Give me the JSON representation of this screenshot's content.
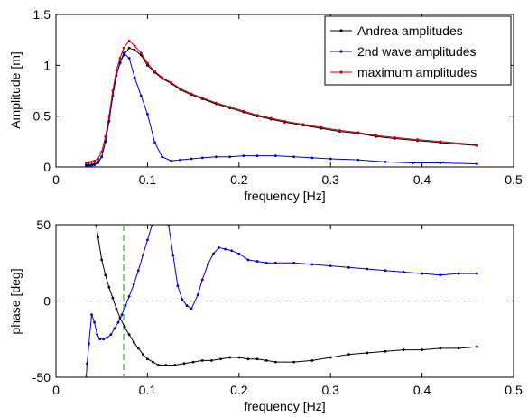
{
  "chart_data": [
    {
      "type": "line",
      "xlabel": "frequency [Hz]",
      "ylabel": "Amplitude [m]",
      "xlim": [
        0,
        0.5
      ],
      "ylim": [
        0,
        1.5
      ],
      "xticks": [
        0,
        0.1,
        0.2,
        0.3,
        0.4,
        0.5
      ],
      "xtick_labels": [
        "0",
        "0.1",
        "0.2",
        "0.3",
        "0.4",
        "0.5"
      ],
      "yticks": [
        0,
        0.5,
        1,
        1.5
      ],
      "ytick_labels": [
        "0",
        "0.5",
        "1",
        "1.5"
      ],
      "grid": false,
      "legend": "top-right",
      "series": [
        {
          "name": "Andrea amplitudes",
          "color": "#000000",
          "points": [
            [
              0.033,
              0.02
            ],
            [
              0.036,
              0.02
            ],
            [
              0.039,
              0.025
            ],
            [
              0.042,
              0.03
            ],
            [
              0.046,
              0.05
            ],
            [
              0.05,
              0.1
            ],
            [
              0.054,
              0.25
            ],
            [
              0.058,
              0.45
            ],
            [
              0.062,
              0.7
            ],
            [
              0.066,
              0.9
            ],
            [
              0.07,
              1.03
            ],
            [
              0.074,
              1.1
            ],
            [
              0.08,
              1.17
            ],
            [
              0.086,
              1.15
            ],
            [
              0.093,
              1.1
            ],
            [
              0.1,
              1.0
            ],
            [
              0.108,
              0.93
            ],
            [
              0.116,
              0.87
            ],
            [
              0.126,
              0.82
            ],
            [
              0.136,
              0.76
            ],
            [
              0.148,
              0.71
            ],
            [
              0.16,
              0.67
            ],
            [
              0.175,
              0.62
            ],
            [
              0.19,
              0.58
            ],
            [
              0.205,
              0.54
            ],
            [
              0.22,
              0.5
            ],
            [
              0.235,
              0.47
            ],
            [
              0.25,
              0.44
            ],
            [
              0.27,
              0.41
            ],
            [
              0.29,
              0.38
            ],
            [
              0.31,
              0.35
            ],
            [
              0.33,
              0.33
            ],
            [
              0.35,
              0.3
            ],
            [
              0.37,
              0.28
            ],
            [
              0.395,
              0.26
            ],
            [
              0.42,
              0.24
            ],
            [
              0.46,
              0.21
            ]
          ]
        },
        {
          "name": "2nd wave amplitudes",
          "color": "#0000cc",
          "points": [
            [
              0.033,
              0.01
            ],
            [
              0.036,
              0.01
            ],
            [
              0.039,
              0.015
            ],
            [
              0.042,
              0.02
            ],
            [
              0.046,
              0.04
            ],
            [
              0.05,
              0.1
            ],
            [
              0.054,
              0.25
            ],
            [
              0.058,
              0.45
            ],
            [
              0.062,
              0.7
            ],
            [
              0.066,
              0.9
            ],
            [
              0.07,
              1.02
            ],
            [
              0.074,
              1.12
            ],
            [
              0.08,
              1.07
            ],
            [
              0.086,
              0.88
            ],
            [
              0.093,
              0.7
            ],
            [
              0.1,
              0.52
            ],
            [
              0.108,
              0.24
            ],
            [
              0.116,
              0.1
            ],
            [
              0.126,
              0.06
            ],
            [
              0.136,
              0.07
            ],
            [
              0.148,
              0.08
            ],
            [
              0.16,
              0.09
            ],
            [
              0.175,
              0.1
            ],
            [
              0.19,
              0.1
            ],
            [
              0.205,
              0.11
            ],
            [
              0.22,
              0.11
            ],
            [
              0.24,
              0.11
            ],
            [
              0.26,
              0.1
            ],
            [
              0.28,
              0.09
            ],
            [
              0.3,
              0.08
            ],
            [
              0.33,
              0.07
            ],
            [
              0.36,
              0.05
            ],
            [
              0.39,
              0.04
            ],
            [
              0.42,
              0.04
            ],
            [
              0.46,
              0.03
            ]
          ]
        },
        {
          "name": "maximum amplitudes",
          "color": "#cc0000",
          "points": [
            [
              0.033,
              0.04
            ],
            [
              0.036,
              0.045
            ],
            [
              0.039,
              0.05
            ],
            [
              0.042,
              0.06
            ],
            [
              0.046,
              0.08
            ],
            [
              0.05,
              0.15
            ],
            [
              0.054,
              0.3
            ],
            [
              0.058,
              0.5
            ],
            [
              0.062,
              0.75
            ],
            [
              0.066,
              0.95
            ],
            [
              0.07,
              1.07
            ],
            [
              0.074,
              1.17
            ],
            [
              0.08,
              1.24
            ],
            [
              0.086,
              1.19
            ],
            [
              0.093,
              1.12
            ],
            [
              0.1,
              1.02
            ],
            [
              0.108,
              0.94
            ],
            [
              0.116,
              0.88
            ],
            [
              0.126,
              0.83
            ],
            [
              0.136,
              0.77
            ],
            [
              0.148,
              0.72
            ],
            [
              0.16,
              0.68
            ],
            [
              0.175,
              0.63
            ],
            [
              0.19,
              0.59
            ],
            [
              0.205,
              0.55
            ],
            [
              0.22,
              0.51
            ],
            [
              0.235,
              0.48
            ],
            [
              0.25,
              0.45
            ],
            [
              0.27,
              0.42
            ],
            [
              0.29,
              0.39
            ],
            [
              0.31,
              0.36
            ],
            [
              0.33,
              0.34
            ],
            [
              0.35,
              0.31
            ],
            [
              0.37,
              0.29
            ],
            [
              0.395,
              0.27
            ],
            [
              0.42,
              0.25
            ],
            [
              0.46,
              0.22
            ]
          ]
        }
      ]
    },
    {
      "type": "line",
      "xlabel": "frequency [Hz]",
      "ylabel": "phase [deg]",
      "xlim": [
        0,
        0.5
      ],
      "ylim": [
        -50,
        50
      ],
      "xticks": [
        0,
        0.1,
        0.2,
        0.3,
        0.4,
        0.5
      ],
      "xtick_labels": [
        "0",
        "0.1",
        "0.2",
        "0.3",
        "0.4",
        "0.5"
      ],
      "yticks": [
        -50,
        0,
        50
      ],
      "ytick_labels": [
        "-50",
        "0",
        "50"
      ],
      "grid": false,
      "series": [
        {
          "color": "#000000",
          "points": [
            [
              0.044,
              50
            ],
            [
              0.046,
              42
            ],
            [
              0.05,
              27
            ],
            [
              0.054,
              17
            ],
            [
              0.058,
              9
            ],
            [
              0.062,
              2
            ],
            [
              0.066,
              -5
            ],
            [
              0.07,
              -11
            ],
            [
              0.075,
              -17
            ],
            [
              0.08,
              -22
            ],
            [
              0.085,
              -27
            ],
            [
              0.09,
              -31
            ],
            [
              0.095,
              -35
            ],
            [
              0.1,
              -38
            ],
            [
              0.106,
              -40
            ],
            [
              0.112,
              -42
            ],
            [
              0.12,
              -42
            ],
            [
              0.13,
              -42
            ],
            [
              0.14,
              -41
            ],
            [
              0.15,
              -40
            ],
            [
              0.16,
              -39
            ],
            [
              0.17,
              -39
            ],
            [
              0.18,
              -38
            ],
            [
              0.19,
              -37
            ],
            [
              0.2,
              -37
            ],
            [
              0.21,
              -38
            ],
            [
              0.22,
              -38
            ],
            [
              0.23,
              -39
            ],
            [
              0.24,
              -40
            ],
            [
              0.26,
              -40
            ],
            [
              0.28,
              -39
            ],
            [
              0.3,
              -37
            ],
            [
              0.32,
              -35
            ],
            [
              0.34,
              -34
            ],
            [
              0.36,
              -33
            ],
            [
              0.38,
              -32
            ],
            [
              0.4,
              -32
            ],
            [
              0.42,
              -31
            ],
            [
              0.44,
              -31
            ],
            [
              0.46,
              -30
            ]
          ]
        },
        {
          "color": "#0000cc",
          "points": [
            [
              0.033,
              -50
            ],
            [
              0.034,
              -41
            ],
            [
              0.036,
              -28
            ],
            [
              0.039,
              -9
            ],
            [
              0.042,
              -14
            ],
            [
              0.045,
              -22
            ],
            [
              0.048,
              -25
            ],
            [
              0.052,
              -25
            ],
            [
              0.056,
              -24
            ],
            [
              0.06,
              -22
            ],
            [
              0.064,
              -18
            ],
            [
              0.068,
              -14
            ],
            [
              0.072,
              -9
            ],
            [
              0.076,
              -3
            ],
            [
              0.08,
              3
            ],
            [
              0.085,
              11
            ],
            [
              0.09,
              20
            ],
            [
              0.095,
              30
            ],
            [
              0.1,
              40
            ],
            [
              0.105,
              50
            ]
          ]
        },
        {
          "color": "#0000cc",
          "points": [
            [
              0.123,
              50
            ],
            [
              0.128,
              30
            ],
            [
              0.133,
              10
            ],
            [
              0.138,
              1
            ],
            [
              0.143,
              -3
            ],
            [
              0.148,
              -5
            ],
            [
              0.155,
              4
            ],
            [
              0.16,
              14
            ],
            [
              0.166,
              24
            ],
            [
              0.172,
              31
            ],
            [
              0.178,
              35
            ],
            [
              0.185,
              34
            ],
            [
              0.192,
              33
            ],
            [
              0.2,
              31
            ],
            [
              0.21,
              27
            ],
            [
              0.22,
              26
            ],
            [
              0.23,
              25
            ],
            [
              0.24,
              25
            ],
            [
              0.26,
              25
            ],
            [
              0.28,
              24
            ],
            [
              0.3,
              23
            ],
            [
              0.32,
              22
            ],
            [
              0.34,
              21
            ],
            [
              0.36,
              20
            ],
            [
              0.38,
              19
            ],
            [
              0.4,
              18
            ],
            [
              0.42,
              17
            ],
            [
              0.44,
              18
            ],
            [
              0.46,
              18
            ]
          ]
        }
      ],
      "reference_lines": [
        {
          "orientation": "horizontal",
          "value": 0,
          "x_range": [
            0.033,
            0.46
          ],
          "color": "#ff4444",
          "style": "dashed"
        },
        {
          "orientation": "vertical",
          "value": 0.074,
          "color": "#44cc44",
          "style": "dashed"
        }
      ]
    }
  ]
}
